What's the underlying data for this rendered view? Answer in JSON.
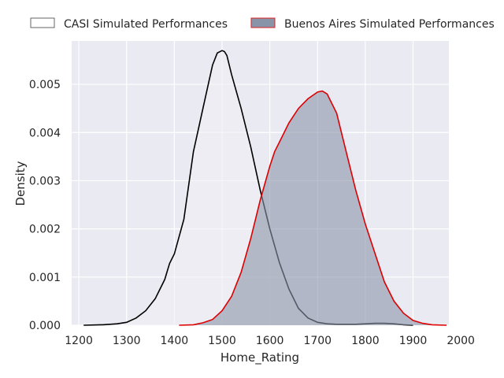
{
  "chart_data": {
    "type": "area",
    "title": "",
    "xlabel": "Home_Rating",
    "ylabel": "Density",
    "xlim": [
      1185,
      1975
    ],
    "ylim": [
      0,
      0.0059
    ],
    "xticks": [
      1200,
      1300,
      1400,
      1500,
      1600,
      1700,
      1800,
      1900,
      2000
    ],
    "yticks": [
      0.0,
      0.001,
      0.002,
      0.003,
      0.004,
      0.005
    ],
    "ytick_labels": [
      "0.000",
      "0.001",
      "0.002",
      "0.003",
      "0.004",
      "0.005"
    ],
    "grid": true,
    "legend_position": "top",
    "background_color": "#eaeaf2",
    "series": [
      {
        "name": "CASI Simulated Performances",
        "line_color": "#000000",
        "fill_color": "#eeeef4",
        "x": [
          1210,
          1250,
          1280,
          1300,
          1320,
          1340,
          1360,
          1380,
          1390,
          1400,
          1420,
          1440,
          1460,
          1480,
          1490,
          1500,
          1505,
          1510,
          1520,
          1540,
          1560,
          1580,
          1600,
          1620,
          1640,
          1660,
          1680,
          1700,
          1720,
          1740,
          1760,
          1780,
          1800,
          1820,
          1840,
          1860,
          1880,
          1900
        ],
        "y": [
          0.0,
          1e-05,
          3e-05,
          6e-05,
          0.00015,
          0.0003,
          0.00055,
          0.00095,
          0.00128,
          0.00148,
          0.0022,
          0.0036,
          0.0045,
          0.0054,
          0.00565,
          0.0057,
          0.00568,
          0.0056,
          0.0052,
          0.0045,
          0.0037,
          0.0028,
          0.002,
          0.0013,
          0.00075,
          0.00035,
          0.00015,
          6e-05,
          3e-05,
          2e-05,
          2e-05,
          2e-05,
          3e-05,
          4e-05,
          4e-05,
          3e-05,
          1e-05,
          0.0
        ]
      },
      {
        "name": "Buenos Aires Simulated Performances",
        "line_color": "#dd0000",
        "fill_color": "#8a94a8",
        "x": [
          1410,
          1440,
          1460,
          1480,
          1500,
          1520,
          1540,
          1560,
          1580,
          1600,
          1610,
          1620,
          1640,
          1660,
          1680,
          1700,
          1710,
          1720,
          1740,
          1760,
          1780,
          1800,
          1820,
          1840,
          1860,
          1880,
          1900,
          1920,
          1940,
          1970
        ],
        "y": [
          0.0,
          1e-05,
          5e-05,
          0.00012,
          0.0003,
          0.0006,
          0.0011,
          0.0018,
          0.0026,
          0.0033,
          0.0036,
          0.0038,
          0.0042,
          0.0045,
          0.0047,
          0.00484,
          0.00486,
          0.0048,
          0.0044,
          0.0036,
          0.0028,
          0.0021,
          0.0015,
          0.0009,
          0.0005,
          0.00025,
          0.0001,
          4e-05,
          1e-05,
          0.0
        ]
      }
    ]
  }
}
